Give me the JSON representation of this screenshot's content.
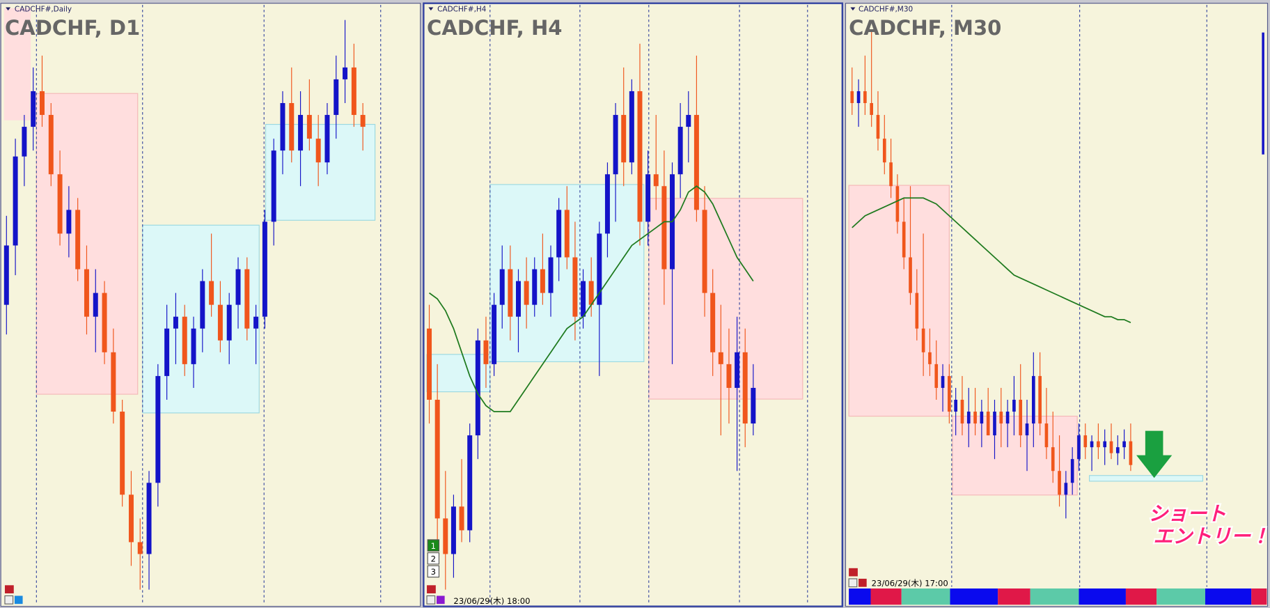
{
  "panels": [
    {
      "symbol_label": "CADCHF#,Daily",
      "title": "CADCHF, D1",
      "ylim": [
        0,
        100
      ],
      "up_color": "#1414c8",
      "down_color": "#f0561c",
      "candles": [
        [
          50,
          65,
          45,
          60
        ],
        [
          60,
          78,
          55,
          75
        ],
        [
          75,
          82,
          70,
          80
        ],
        [
          80,
          90,
          76,
          86
        ],
        [
          86,
          92,
          80,
          82
        ],
        [
          82,
          84,
          70,
          72
        ],
        [
          72,
          76,
          60,
          62
        ],
        [
          62,
          70,
          58,
          66
        ],
        [
          66,
          68,
          54,
          56
        ],
        [
          56,
          60,
          45,
          48
        ],
        [
          48,
          56,
          42,
          52
        ],
        [
          52,
          54,
          40,
          42
        ],
        [
          42,
          46,
          30,
          32
        ],
        [
          32,
          34,
          16,
          18
        ],
        [
          18,
          22,
          6,
          10
        ],
        [
          10,
          14,
          2,
          8
        ],
        [
          8,
          22,
          2,
          20
        ],
        [
          20,
          40,
          16,
          38
        ],
        [
          38,
          50,
          34,
          46
        ],
        [
          46,
          52,
          40,
          48
        ],
        [
          48,
          50,
          38,
          40
        ],
        [
          40,
          48,
          36,
          46
        ],
        [
          46,
          56,
          42,
          54
        ],
        [
          54,
          62,
          48,
          50
        ],
        [
          50,
          54,
          42,
          44
        ],
        [
          44,
          52,
          40,
          50
        ],
        [
          50,
          58,
          46,
          56
        ],
        [
          56,
          58,
          44,
          46
        ],
        [
          46,
          50,
          40,
          48
        ],
        [
          48,
          66,
          46,
          64
        ],
        [
          64,
          78,
          60,
          76
        ],
        [
          76,
          86,
          72,
          84
        ],
        [
          84,
          90,
          74,
          76
        ],
        [
          76,
          86,
          70,
          82
        ],
        [
          82,
          88,
          76,
          78
        ],
        [
          78,
          82,
          70,
          74
        ],
        [
          74,
          84,
          72,
          82
        ],
        [
          82,
          92,
          78,
          88
        ],
        [
          88,
          98,
          84,
          90
        ],
        [
          90,
          94,
          80,
          82
        ],
        [
          82,
          84,
          76,
          80
        ]
      ]
    },
    {
      "symbol_label": "CADCHF#,H4",
      "title": "CADCHF, H4",
      "ylim": [
        0,
        100
      ],
      "up_color": "#1414c8",
      "down_color": "#f0561c",
      "ma_color": "#1e7a1e",
      "timestamp": "23/06/29(木) 18:00",
      "buttons": [
        "1",
        "2",
        "3"
      ],
      "candles": [
        [
          46,
          50,
          30,
          34
        ],
        [
          34,
          40,
          10,
          14
        ],
        [
          14,
          22,
          2,
          8
        ],
        [
          8,
          18,
          4,
          16
        ],
        [
          16,
          24,
          10,
          12
        ],
        [
          12,
          30,
          10,
          28
        ],
        [
          28,
          46,
          24,
          44
        ],
        [
          44,
          48,
          36,
          40
        ],
        [
          40,
          52,
          38,
          50
        ],
        [
          50,
          60,
          46,
          56
        ],
        [
          56,
          60,
          44,
          48
        ],
        [
          48,
          56,
          42,
          54
        ],
        [
          54,
          58,
          46,
          50
        ],
        [
          50,
          58,
          48,
          56
        ],
        [
          56,
          62,
          50,
          52
        ],
        [
          52,
          60,
          48,
          58
        ],
        [
          58,
          68,
          54,
          66
        ],
        [
          66,
          70,
          56,
          58
        ],
        [
          58,
          64,
          44,
          48
        ],
        [
          48,
          56,
          46,
          54
        ],
        [
          54,
          58,
          48,
          50
        ],
        [
          50,
          64,
          38,
          62
        ],
        [
          62,
          74,
          58,
          72
        ],
        [
          72,
          84,
          64,
          82
        ],
        [
          82,
          90,
          70,
          74
        ],
        [
          74,
          88,
          72,
          86
        ],
        [
          86,
          94,
          60,
          64
        ],
        [
          64,
          76,
          60,
          72
        ],
        [
          72,
          82,
          66,
          70
        ],
        [
          70,
          76,
          50,
          56
        ],
        [
          56,
          74,
          40,
          72
        ],
        [
          72,
          84,
          68,
          80
        ],
        [
          80,
          86,
          74,
          82
        ],
        [
          82,
          92,
          64,
          66
        ],
        [
          66,
          70,
          48,
          52
        ],
        [
          52,
          56,
          38,
          42
        ],
        [
          42,
          50,
          28,
          40
        ],
        [
          40,
          46,
          30,
          36
        ],
        [
          36,
          48,
          22,
          42
        ],
        [
          42,
          46,
          26,
          30
        ],
        [
          30,
          40,
          28,
          36
        ]
      ],
      "ma": [
        52,
        51,
        49,
        46,
        42,
        38,
        35,
        33,
        32,
        32,
        32,
        34,
        36,
        38,
        40,
        42,
        44,
        46,
        47,
        48,
        50,
        52,
        54,
        56,
        58,
        60,
        61,
        62,
        63,
        64,
        64,
        66,
        69,
        70,
        69,
        67,
        64,
        61,
        58,
        56,
        54
      ]
    },
    {
      "symbol_label": "CADCHF#,M30",
      "title": "CADCHF, M30",
      "ylim": [
        0,
        100
      ],
      "up_color": "#1414c8",
      "down_color": "#f0561c",
      "ma_color": "#1e7a1e",
      "timestamp": "23/06/29(木) 17:00",
      "annotation": [
        "ショート",
        "エントリー！"
      ],
      "candles": [
        [
          86,
          90,
          82,
          84
        ],
        [
          84,
          88,
          80,
          86
        ],
        [
          86,
          92,
          82,
          84
        ],
        [
          84,
          96,
          80,
          82
        ],
        [
          82,
          86,
          76,
          78
        ],
        [
          78,
          82,
          72,
          74
        ],
        [
          74,
          78,
          68,
          70
        ],
        [
          70,
          72,
          62,
          64
        ],
        [
          64,
          68,
          56,
          58
        ],
        [
          58,
          70,
          50,
          52
        ],
        [
          52,
          56,
          44,
          46
        ],
        [
          46,
          62,
          38,
          42
        ],
        [
          42,
          46,
          38,
          40
        ],
        [
          40,
          44,
          34,
          36
        ],
        [
          36,
          40,
          32,
          38
        ],
        [
          38,
          40,
          30,
          32
        ],
        [
          32,
          36,
          28,
          34
        ],
        [
          34,
          38,
          28,
          30
        ],
        [
          30,
          36,
          26,
          32
        ],
        [
          32,
          36,
          28,
          30
        ],
        [
          30,
          34,
          26,
          32
        ],
        [
          32,
          36,
          28,
          28
        ],
        [
          28,
          34,
          24,
          32
        ],
        [
          32,
          36,
          26,
          30
        ],
        [
          30,
          34,
          26,
          32
        ],
        [
          32,
          38,
          28,
          34
        ],
        [
          34,
          40,
          26,
          28
        ],
        [
          28,
          34,
          22,
          30
        ],
        [
          30,
          42,
          26,
          38
        ],
        [
          38,
          42,
          28,
          30
        ],
        [
          30,
          36,
          24,
          26
        ],
        [
          26,
          32,
          20,
          22
        ],
        [
          22,
          28,
          16,
          18
        ],
        [
          18,
          22,
          14,
          20
        ],
        [
          20,
          26,
          18,
          24
        ],
        [
          24,
          30,
          22,
          28
        ],
        [
          28,
          30,
          24,
          26
        ],
        [
          26,
          28,
          22,
          27
        ],
        [
          27,
          30,
          24,
          26
        ],
        [
          26,
          29,
          23,
          27
        ],
        [
          27,
          30,
          24,
          25
        ],
        [
          25,
          28,
          23,
          26
        ],
        [
          26,
          29,
          24,
          27
        ],
        [
          27,
          30,
          22,
          23
        ]
      ],
      "ma": [
        63,
        64,
        65,
        65.5,
        66,
        66.5,
        67,
        67.5,
        68,
        68,
        68,
        68,
        67.5,
        67,
        66,
        65,
        64,
        63,
        62,
        61,
        60,
        59,
        58,
        57,
        56,
        55,
        54.5,
        54,
        53.5,
        53,
        52.5,
        52,
        51.5,
        51,
        50.5,
        50,
        49.5,
        49,
        48.5,
        48,
        48,
        47.5,
        47.5,
        47
      ]
    }
  ]
}
